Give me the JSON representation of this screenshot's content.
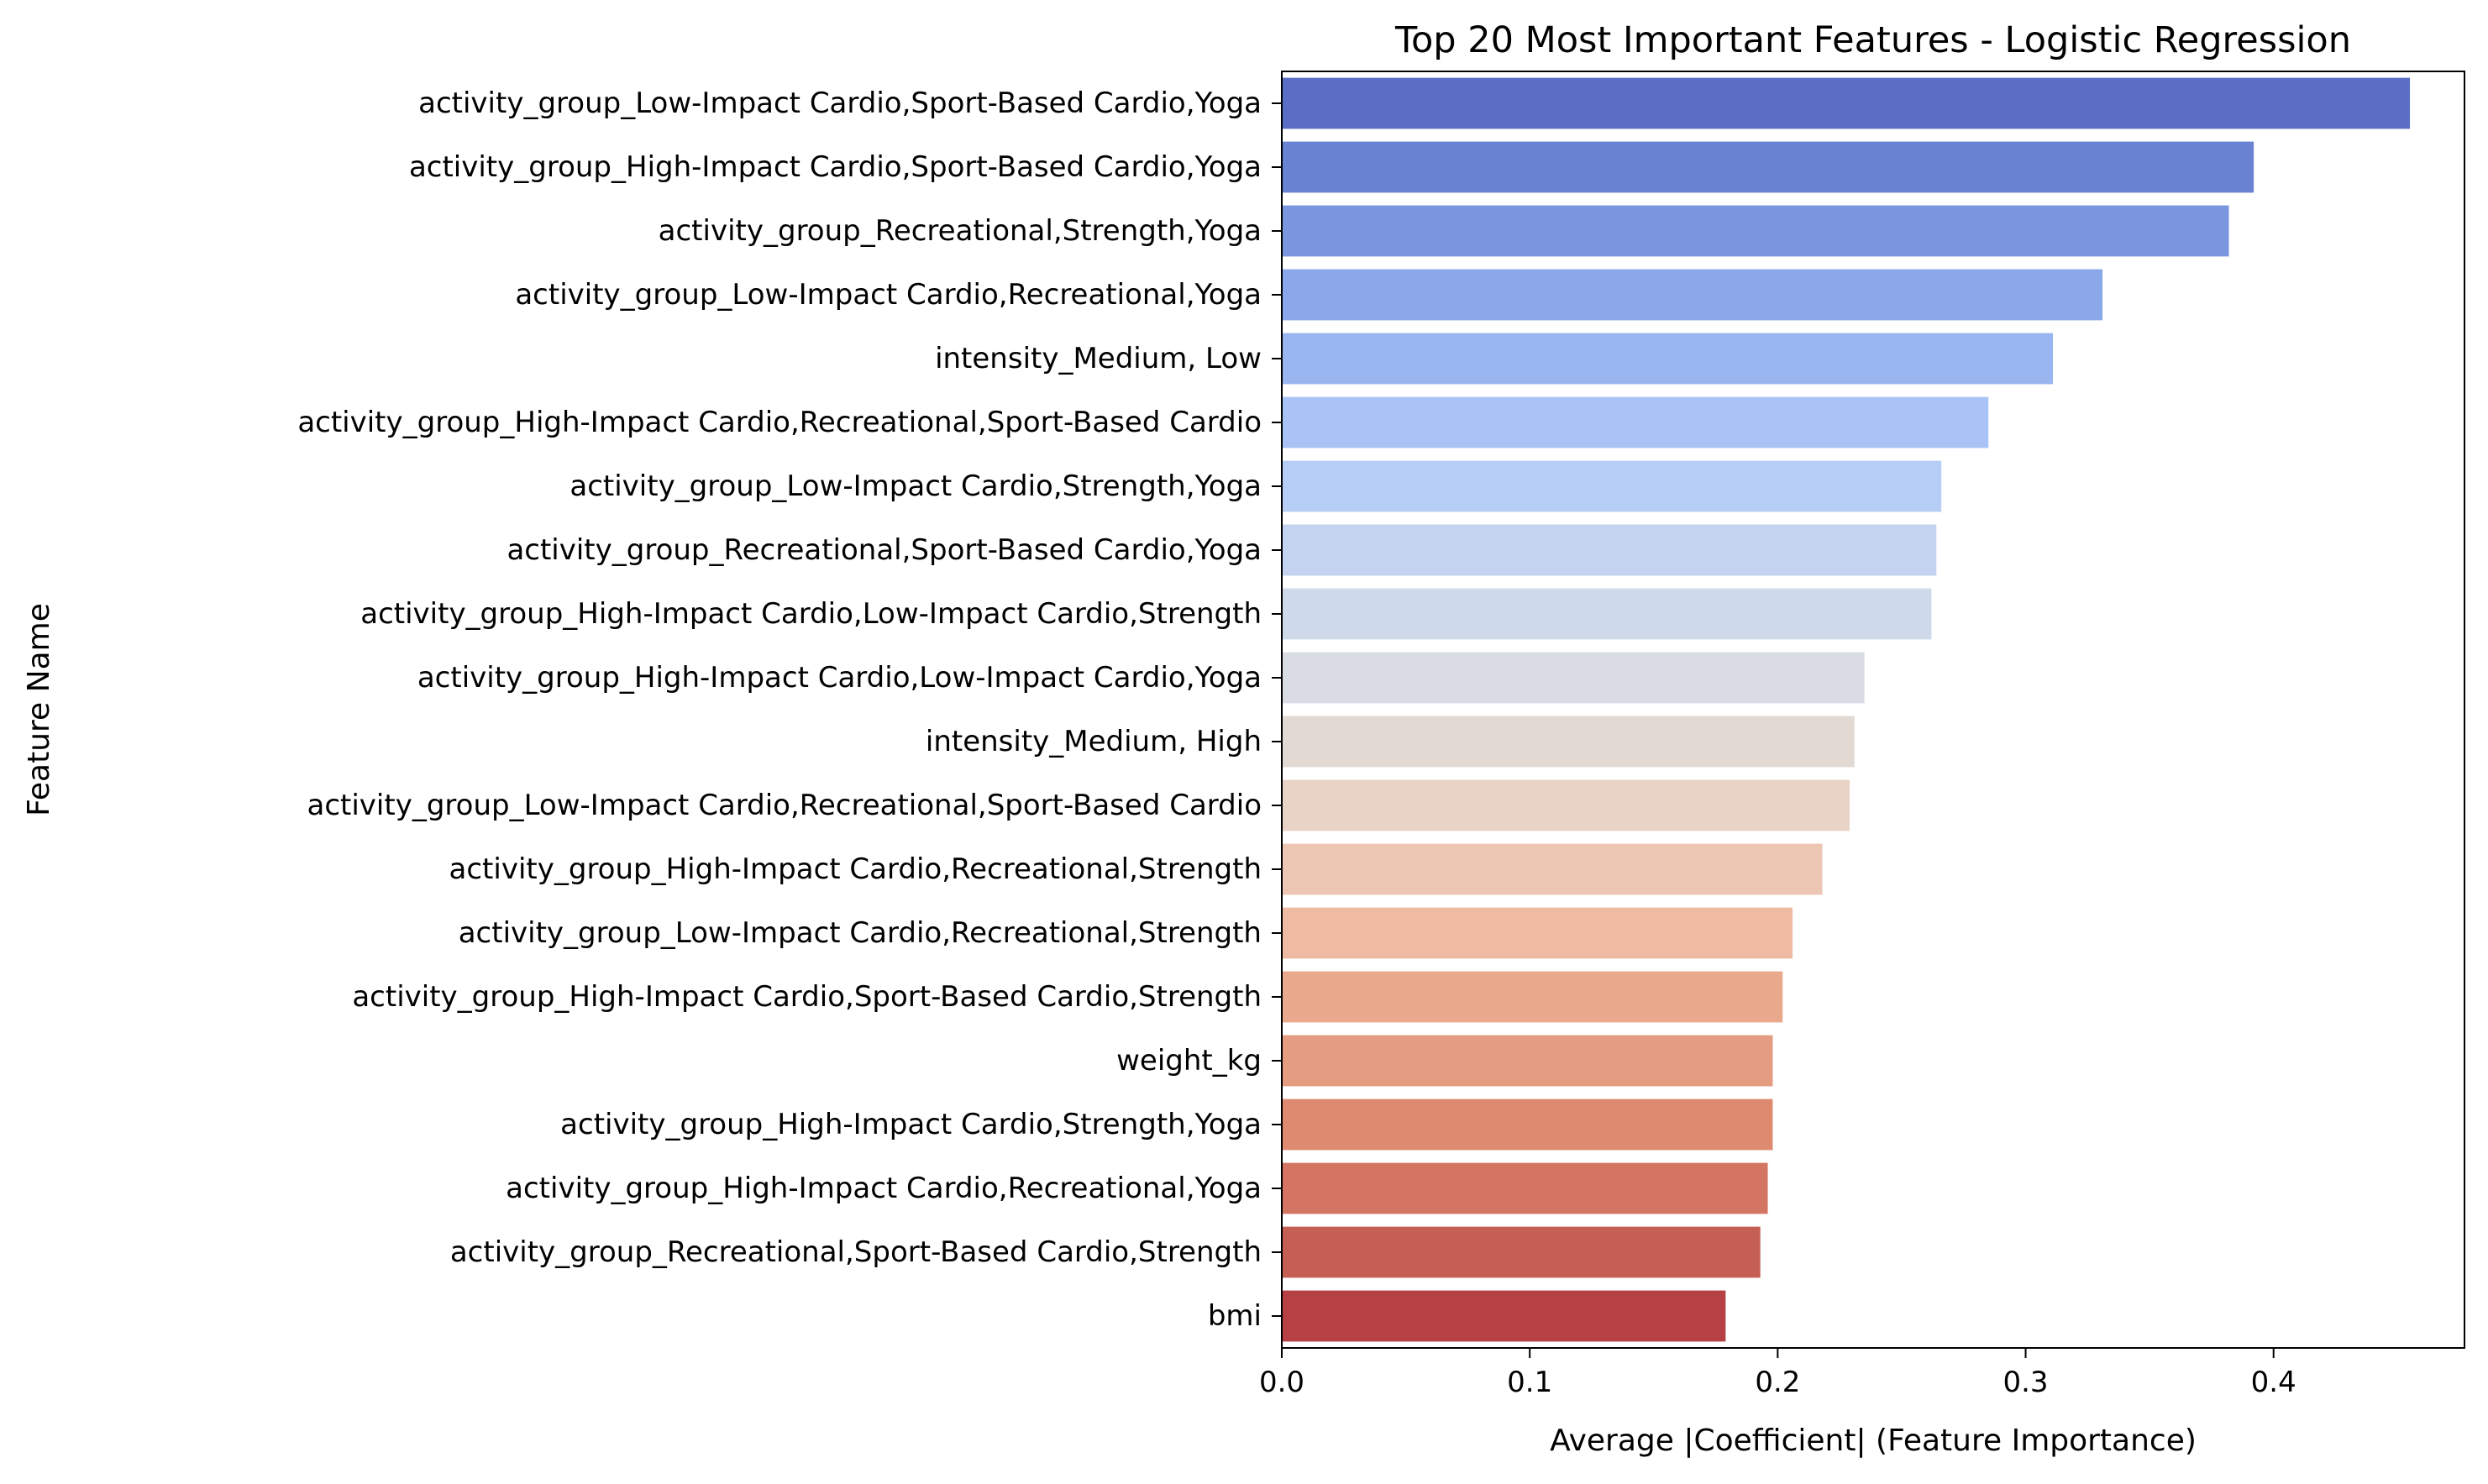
{
  "chart_data": {
    "type": "bar",
    "orientation": "horizontal",
    "title": "Top 20 Most Important Features - Logistic Regression",
    "xlabel": "Average |Coefficient| (Feature Importance)",
    "ylabel": "Feature Name",
    "xlim": [
      0,
      0.477
    ],
    "xticks": [
      "0.0",
      "0.1",
      "0.2",
      "0.3",
      "0.4"
    ],
    "xtick_values": [
      0.0,
      0.1,
      0.2,
      0.3,
      0.4
    ],
    "grid": false,
    "legend": "none",
    "palette": "coolwarm",
    "categories": [
      "activity_group_Low-Impact Cardio,Sport-Based Cardio,Yoga",
      "activity_group_High-Impact Cardio,Sport-Based Cardio,Yoga",
      "activity_group_Recreational,Strength,Yoga",
      "activity_group_Low-Impact Cardio,Recreational,Yoga",
      "intensity_Medium, Low",
      "activity_group_High-Impact Cardio,Recreational,Sport-Based Cardio",
      "activity_group_Low-Impact Cardio,Strength,Yoga",
      "activity_group_Recreational,Sport-Based Cardio,Yoga",
      "activity_group_High-Impact Cardio,Low-Impact Cardio,Strength",
      "activity_group_High-Impact Cardio,Low-Impact Cardio,Yoga",
      "intensity_Medium, High",
      "activity_group_Low-Impact Cardio,Recreational,Sport-Based Cardio",
      "activity_group_High-Impact Cardio,Recreational,Strength",
      "activity_group_Low-Impact Cardio,Recreational,Strength",
      "activity_group_High-Impact Cardio,Sport-Based Cardio,Strength",
      "weight_kg",
      "activity_group_High-Impact Cardio,Strength,Yoga",
      "activity_group_High-Impact Cardio,Recreational,Yoga",
      "activity_group_Recreational,Sport-Based Cardio,Strength",
      "bmi"
    ],
    "values": [
      0.455,
      0.392,
      0.382,
      0.331,
      0.311,
      0.285,
      0.266,
      0.264,
      0.262,
      0.235,
      0.231,
      0.229,
      0.218,
      0.206,
      0.202,
      0.198,
      0.198,
      0.196,
      0.193,
      0.179
    ],
    "colors": [
      "#5b6ec5",
      "#6a82d2",
      "#7a96df",
      "#8aa7ea",
      "#9ab6f1",
      "#a9c3f6",
      "#b6cdf6",
      "#c3d3f0",
      "#ceDaea",
      "#d9dce3",
      "#e2d9d3",
      "#e9d2c6",
      "#edc6b4",
      "#eebaa1",
      "#eaa98d",
      "#e59d81",
      "#de8a71",
      "#d37562",
      "#c55f53",
      "#b54145"
    ]
  }
}
